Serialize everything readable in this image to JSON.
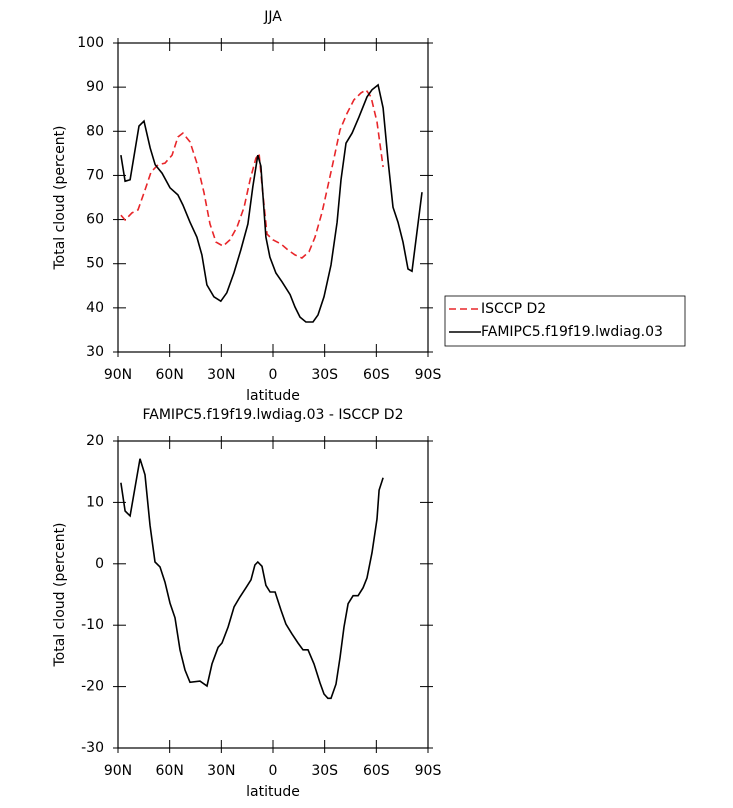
{
  "chart_data": [
    {
      "type": "line",
      "title": "JJA",
      "xlabel": "latitude",
      "ylabel": "Total cloud (percent)",
      "xlim": [
        90,
        -90
      ],
      "xticks": [
        {
          "value": 90,
          "label": "90N"
        },
        {
          "value": 60,
          "label": "60N"
        },
        {
          "value": 30,
          "label": "30N"
        },
        0,
        {
          "value": -30,
          "label": "30S"
        },
        {
          "value": -60,
          "label": "60S"
        },
        {
          "value": -90,
          "label": "90S"
        }
      ],
      "ylim": [
        30,
        100
      ],
      "yticks": [
        30,
        40,
        50,
        60,
        70,
        80,
        90,
        100
      ],
      "legend": "right",
      "series": [
        {
          "name": "ISCCP D2",
          "color": "#e8262a",
          "dash": true,
          "x": [
            88.3,
            85.9,
            81.9,
            78.4,
            74.3,
            70.8,
            66.8,
            62.7,
            58.6,
            55.2,
            52.3,
            48.2,
            44.2,
            40.1,
            36.6,
            33.1,
            29.0,
            25.0,
            20.9,
            16.8,
            13.3,
            9.9,
            8.1,
            6.4,
            3.5,
            0,
            -4.6,
            -8.7,
            -12.8,
            -16.8,
            -20.9,
            -24.4,
            -28.5,
            -32.0,
            -35.4,
            -38.9,
            -43.0,
            -47.0,
            -51.1,
            -54.0,
            -56.9,
            -60.4,
            -63.9
          ],
          "values": [
            61,
            59.9,
            61.5,
            62.2,
            66.7,
            70.8,
            72.4,
            72.8,
            74.6,
            78.7,
            79.6,
            77.6,
            72.8,
            66.2,
            59,
            54.9,
            54,
            55.4,
            58.3,
            62.8,
            69,
            73.9,
            74.9,
            67.8,
            56.7,
            55.4,
            54.5,
            53.1,
            52,
            51.3,
            52.7,
            56,
            61.7,
            67.8,
            73.9,
            80.3,
            84.1,
            87.1,
            88.7,
            89.4,
            87.8,
            82.1,
            71.9
          ]
        },
        {
          "name": "FAMIPC5.f19f19.lwdiag.03",
          "color": "#000000",
          "dash": false,
          "x": [
            88.3,
            85.9,
            83.0,
            77.8,
            74.9,
            71.3,
            68.4,
            64.4,
            59.8,
            55.2,
            52.3,
            48.2,
            44.2,
            41.3,
            38.4,
            34.3,
            30.3,
            26.8,
            22.7,
            18.7,
            14.6,
            11.7,
            8.8,
            7.0,
            4.1,
            1.8,
            -1.7,
            -5.2,
            -9.9,
            -12.8,
            -15.7,
            -19.1,
            -23.2,
            -26.1,
            -29.6,
            -33.7,
            -37.2,
            -39.5,
            -42.4,
            -45.9,
            -49.9,
            -54.6,
            -57.5,
            -61.0,
            -63.9,
            -66.8,
            -69.7,
            -72.6,
            -75.5,
            -78.4,
            -80.7,
            -86.5
          ],
          "values": [
            74.6,
            68.7,
            69,
            81.2,
            82.3,
            76.2,
            72.4,
            70.5,
            67.2,
            65.6,
            63.3,
            59.4,
            56,
            52,
            45.2,
            42.5,
            41.5,
            43.4,
            47.9,
            53.1,
            59,
            67.4,
            74.6,
            72.1,
            56,
            51.5,
            47.9,
            45.9,
            43,
            40.2,
            37.9,
            36.8,
            36.8,
            38.4,
            42.5,
            49.7,
            59.4,
            69,
            77.3,
            79.6,
            83.2,
            87.8,
            89.4,
            90.5,
            85.3,
            73.5,
            62.8,
            59.4,
            54.9,
            48.8,
            48.3,
            66.2
          ]
        }
      ]
    },
    {
      "type": "line",
      "title": "FAMIPC5.f19f19.lwdiag.03 - ISCCP D2",
      "xlabel": "latitude",
      "ylabel": "Total cloud (percent)",
      "xlim": [
        90,
        -90
      ],
      "xticks": [
        {
          "value": 90,
          "label": "90N"
        },
        {
          "value": 60,
          "label": "60N"
        },
        {
          "value": 30,
          "label": "30N"
        },
        0,
        {
          "value": -30,
          "label": "30S"
        },
        {
          "value": -60,
          "label": "60S"
        },
        {
          "value": -90,
          "label": "90S"
        }
      ],
      "ylim": [
        -30,
        20
      ],
      "yticks": [
        -30,
        -20,
        -10,
        0,
        10,
        20
      ],
      "color": "#000000",
      "x": [
        88.3,
        85.9,
        83.0,
        77.2,
        74.3,
        71.4,
        68.5,
        65.6,
        62.7,
        59.8,
        56.9,
        54.0,
        51.1,
        48.2,
        42.4,
        38.3,
        35.4,
        31.9,
        29.6,
        26.1,
        22.6,
        19.2,
        15.7,
        12.8,
        10.5,
        8.8,
        6.4,
        4.1,
        1.7,
        -1.2,
        -4.6,
        -7.5,
        -11.0,
        -14.5,
        -17.4,
        -20.3,
        -23.8,
        -27.3,
        -29.6,
        -31.9,
        -33.7,
        -36.6,
        -38.9,
        -41.2,
        -43.6,
        -46.5,
        -49.4,
        -52.3,
        -54.6,
        -57.5,
        -60.4,
        -61.6,
        -63.9
      ],
      "values": [
        13.2,
        8.6,
        7.8,
        17.1,
        14.5,
        6.3,
        0.3,
        -0.5,
        -3,
        -6.4,
        -8.8,
        -14,
        -17.3,
        -19.3,
        -19.1,
        -19.9,
        -16.3,
        -13.6,
        -12.9,
        -10.3,
        -7,
        -5.4,
        -3.9,
        -2.6,
        -0.2,
        0.3,
        -0.4,
        -3.5,
        -4.6,
        -4.6,
        -7.5,
        -9.8,
        -11.4,
        -12.9,
        -14,
        -14,
        -16.3,
        -19.4,
        -21.2,
        -21.9,
        -21.9,
        -19.6,
        -15.3,
        -10.3,
        -6.5,
        -5.2,
        -5.2,
        -3.9,
        -2.3,
        1.8,
        7.3,
        12.0,
        14.0
      ]
    }
  ]
}
